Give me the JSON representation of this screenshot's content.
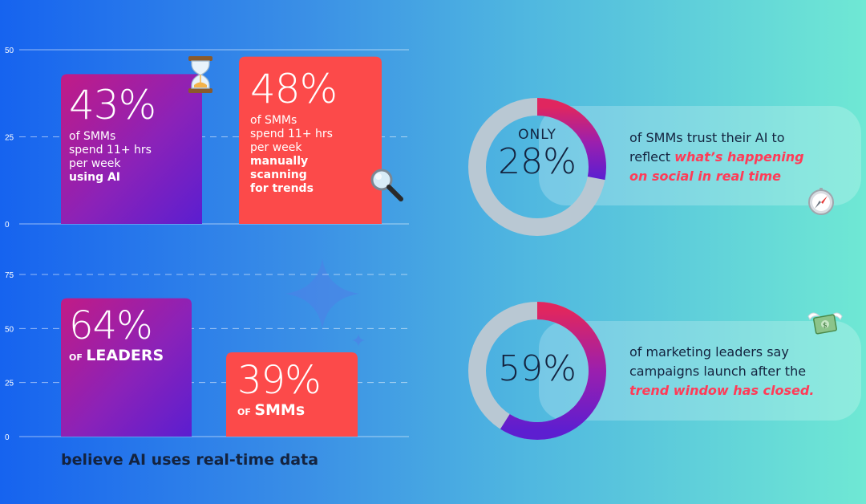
{
  "chart_data": [
    {
      "type": "bar",
      "ylim": [
        0,
        50
      ],
      "yticks": [
        0,
        25,
        50
      ],
      "categories": [
        "using AI",
        "manually scanning for trends"
      ],
      "values": [
        43,
        48
      ],
      "labels": [
        {
          "value": "43%",
          "line1": "of SMMs",
          "line2": "spend 11+ hrs",
          "line3": "per week",
          "bold": "using AI"
        },
        {
          "value": "48%",
          "line1": "of SMMs",
          "line2": "spend 11+ hrs",
          "line3": "per week",
          "bold1": "manually",
          "bold2": "scanning",
          "bold3": "for trends"
        }
      ],
      "colors": [
        "#8b22b8",
        "#fc4a4a"
      ],
      "icons": [
        "hourglass-icon",
        "magnifier-icon"
      ]
    },
    {
      "type": "bar",
      "ylim": [
        0,
        75
      ],
      "yticks": [
        0,
        25,
        50,
        75
      ],
      "categories": [
        "LEADERS",
        "SMMs"
      ],
      "values": [
        64,
        39
      ],
      "labels": [
        {
          "value": "64%",
          "prefix": "OF",
          "group": "LEADERS"
        },
        {
          "value": "39%",
          "prefix": "OF",
          "group": "SMMs"
        }
      ],
      "caption": "believe AI uses real-time data",
      "colors": [
        "#8b22b8",
        "#fc4a4a"
      ]
    },
    {
      "type": "pie",
      "values": [
        28,
        72
      ],
      "pre_label": "ONLY",
      "label": "28%",
      "text_plain1": "of SMMs trust their AI to",
      "text_plain2": "reflect",
      "text_highlight1": "what’s happening",
      "text_highlight2": "on social in real time",
      "icon": "compass-icon"
    },
    {
      "type": "pie",
      "values": [
        59,
        41
      ],
      "label": "59%",
      "text_plain1": "of marketing leaders say",
      "text_plain2": "campaigns launch after the",
      "text_highlight": "trend window has closed.",
      "icon": "money-wings-icon"
    }
  ],
  "colors": {
    "purple_start": "#b41d8c",
    "purple_end": "#6a1fc8",
    "coral": "#fc4a4a",
    "donut_track": "#b9c8d3",
    "highlight": "#ff3b57",
    "dark_text": "#14233f"
  }
}
